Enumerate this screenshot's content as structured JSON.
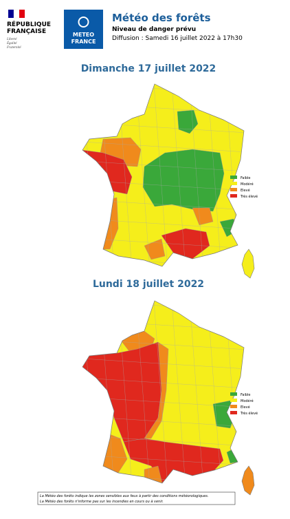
{
  "header": {
    "republique": [
      "RÉPUBLIQUE",
      "FRANÇAISE"
    ],
    "motto": [
      "Liberté",
      "Égalité",
      "Fraternité"
    ],
    "logo": [
      "METEO",
      "FRANCE"
    ],
    "title": "Météo des forêts",
    "subtitle": "Niveau de danger prévu",
    "diffusion": "Diffusion : Samedi 16 juillet 2022 à 17h30"
  },
  "maps": [
    {
      "title": "Dimanche 17 juillet 2022",
      "legend": [
        {
          "label": "Faible",
          "color": "#3aa83a"
        },
        {
          "label": "Modéré",
          "color": "#f5ee1b"
        },
        {
          "label": "Elevé",
          "color": "#f08a1c"
        },
        {
          "label": "Très élevé",
          "color": "#e0281e"
        }
      ]
    },
    {
      "title": "Lundi 18 juillet 2022",
      "legend": [
        {
          "label": "Faible",
          "color": "#3aa83a"
        },
        {
          "label": "Modéré",
          "color": "#f5ee1b"
        },
        {
          "label": "Elevé",
          "color": "#f08a1c"
        },
        {
          "label": "Très élevé",
          "color": "#e0281e"
        }
      ]
    }
  ],
  "footer": [
    "La Météo des forêts indique les zones sensibles aux feux à partir des conditions météorologiques.",
    "La Météo des forêts n'informe pas sur les incendies en cours ou à venir."
  ]
}
